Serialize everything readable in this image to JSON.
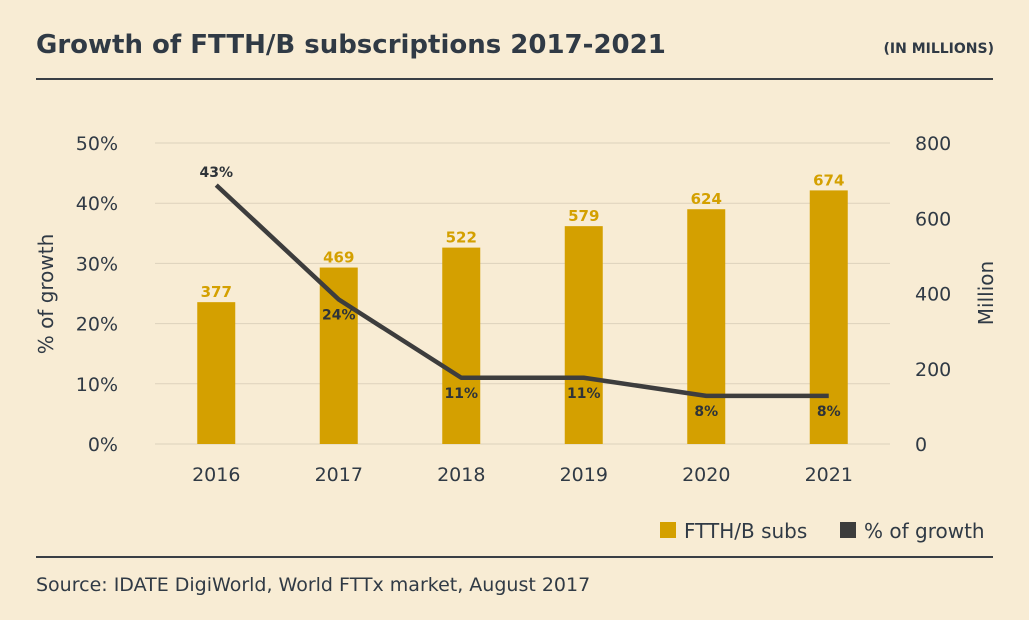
{
  "header": {
    "title": "Growth of FTTH/B subscriptions 2017-2021",
    "unit": "(IN MILLIONS)"
  },
  "footer": {
    "source": "Source: IDATE DigiWorld, World FTTx market, August 2017"
  },
  "colors": {
    "bar": "#d4a000",
    "line": "#3d3d3d",
    "grid": "#ddd2bc",
    "background": "#f8ecd4"
  },
  "chart_data": {
    "type": "bar",
    "categories": [
      "2016",
      "2017",
      "2018",
      "2019",
      "2020",
      "2021"
    ],
    "series": [
      {
        "name": "FTTH/B subs",
        "type": "bar",
        "axis": "right",
        "values": [
          377,
          469,
          522,
          579,
          624,
          674
        ],
        "labels": [
          "377",
          "469",
          "522",
          "579",
          "624",
          "674"
        ]
      },
      {
        "name": "% of growth",
        "type": "line",
        "axis": "left",
        "values": [
          43,
          24,
          11,
          11,
          8,
          8
        ],
        "labels": [
          "43%",
          "24%",
          "11%",
          "11%",
          "8%",
          "8%"
        ]
      }
    ],
    "left_axis": {
      "label": "% of growth",
      "range": [
        0,
        50
      ],
      "ticks": [
        "0%",
        "10%",
        "20%",
        "30%",
        "40%",
        "50%"
      ]
    },
    "right_axis": {
      "label": "Million",
      "range": [
        0,
        800
      ],
      "ticks": [
        "0",
        "200",
        "400",
        "600",
        "800"
      ]
    },
    "grid": true,
    "legend": "bottom-right"
  }
}
